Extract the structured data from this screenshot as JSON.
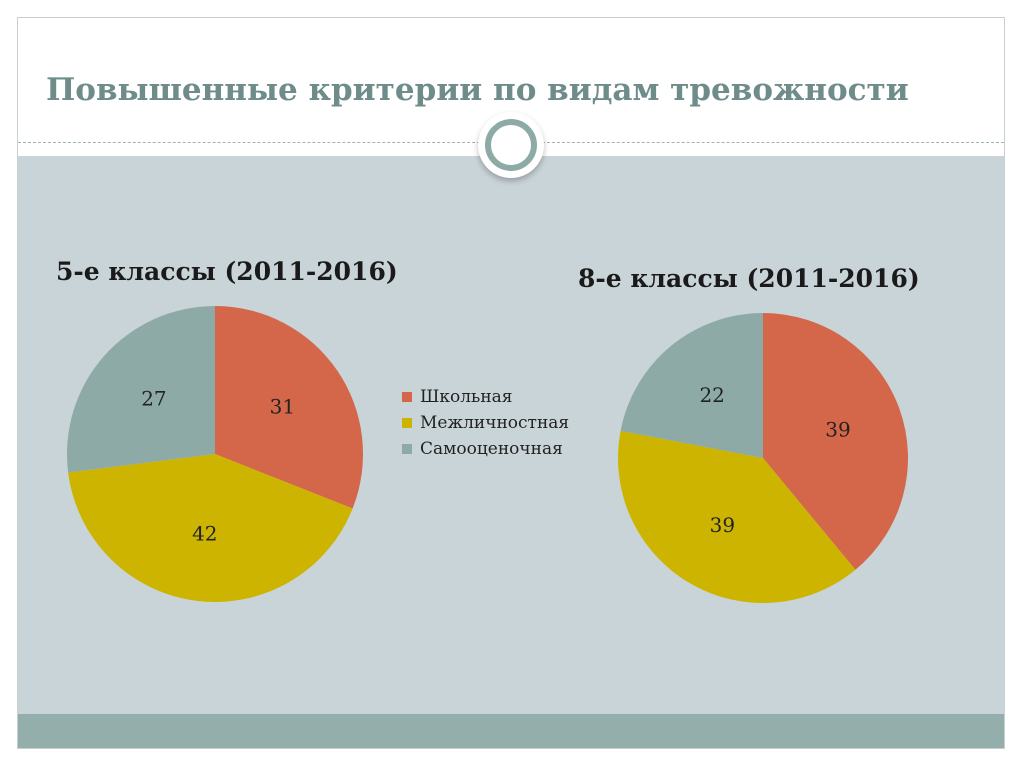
{
  "slide": {
    "title": "Повышенные критерии по видам тревожности"
  },
  "colors": {
    "accent": "#6e8c8a",
    "panel": "#c9d4d8",
    "footer": "#93aeab"
  },
  "legend": {
    "placement": "center",
    "items": [
      {
        "label": "Школьная",
        "color": "#d4664a"
      },
      {
        "label": "Межличностная",
        "color": "#ccb400"
      },
      {
        "label": "Самооценочная",
        "color": "#8eaaa7"
      }
    ]
  },
  "chart_data": [
    {
      "type": "pie",
      "title": "5-е классы (2011-2016)",
      "categories": [
        "Школьная",
        "Межличностная",
        "Самооценочная"
      ],
      "values": [
        31,
        42,
        27
      ],
      "colors": [
        "#d4664a",
        "#ccb400",
        "#8eaaa7"
      ]
    },
    {
      "type": "pie",
      "title": "8-е классы (2011-2016)",
      "categories": [
        "Школьная",
        "Межличностная",
        "Самооценочная"
      ],
      "values": [
        39,
        39,
        22
      ],
      "colors": [
        "#d4664a",
        "#ccb400",
        "#8eaaa7"
      ]
    }
  ]
}
